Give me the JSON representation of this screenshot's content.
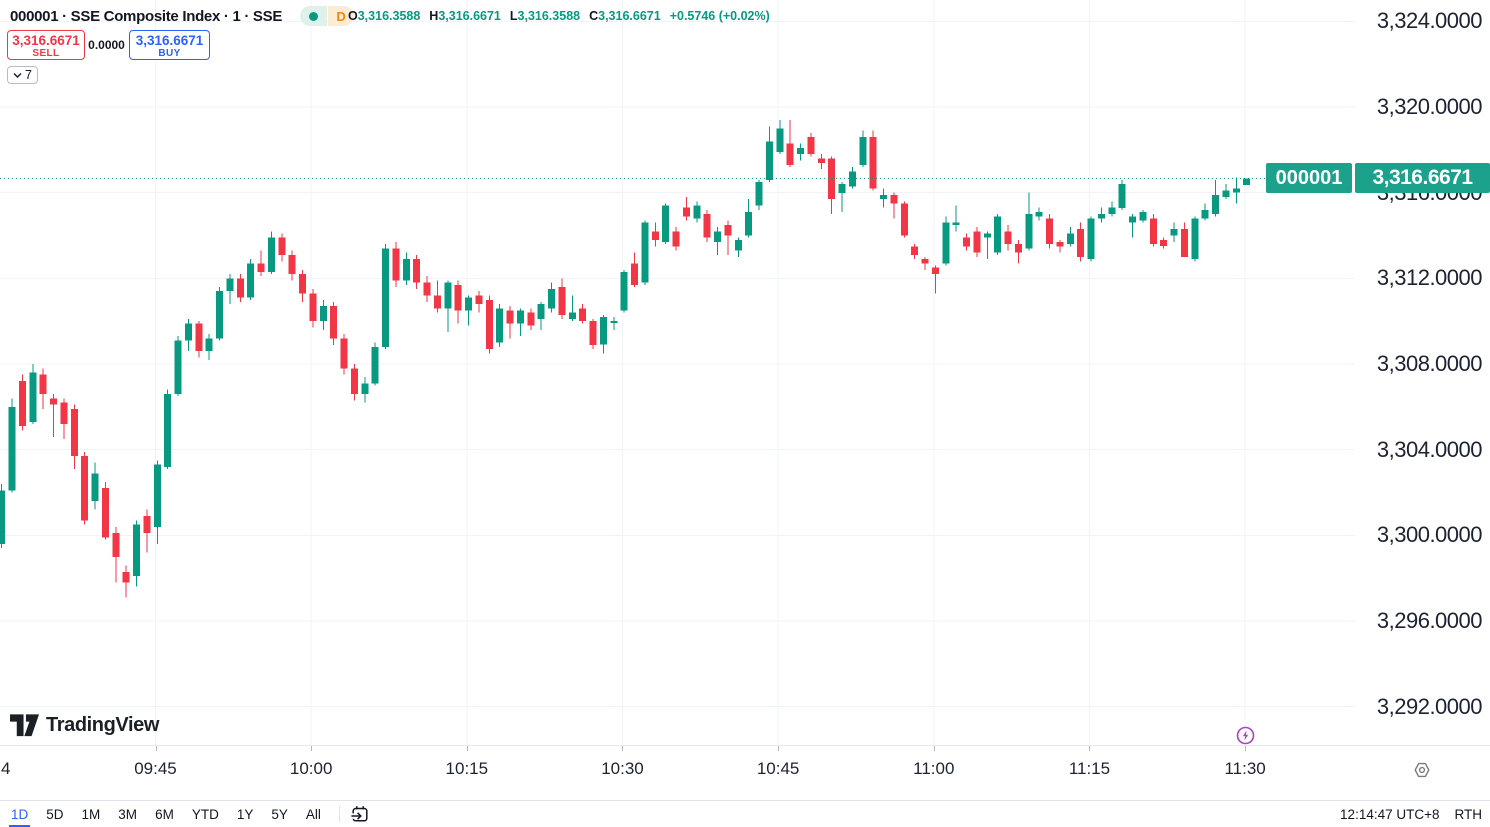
{
  "header": {
    "symbol_title": "000001 · SSE Composite Index · 1 · SSE",
    "market_status": "open",
    "interval_badge": "D",
    "ohlc": {
      "o_key": "O",
      "o_val": "3,316.3588",
      "h_key": "H",
      "h_val": "3,316.6671",
      "l_key": "L",
      "l_val": "3,316.3588",
      "c_key": "C",
      "c_val": "3,316.6671",
      "change": "+0.5746 (+0.02%)"
    },
    "sell_button": {
      "price": "3,316.6671",
      "label": "SELL"
    },
    "spread": "0.0000",
    "buy_button": {
      "price": "3,316.6671",
      "label": "BUY"
    },
    "object_tree_count": "7"
  },
  "price_axis": {
    "labels": [
      {
        "text": "3,324.0000",
        "value": 3324
      },
      {
        "text": "3,320.0000",
        "value": 3320
      },
      {
        "text": "3,316.0000",
        "value": 3316
      },
      {
        "text": "3,312.0000",
        "value": 3312
      },
      {
        "text": "3,308.0000",
        "value": 3308
      },
      {
        "text": "3,304.0000",
        "value": 3304
      },
      {
        "text": "3,300.0000",
        "value": 3300
      },
      {
        "text": "3,296.0000",
        "value": 3296
      },
      {
        "text": "3,292.0000",
        "value": 3292
      }
    ]
  },
  "price_badge": {
    "symbol": "000001",
    "price": "3,316.6671",
    "color": "#1ca28c"
  },
  "time_axis": {
    "labels": [
      "09:45",
      "10:00",
      "10:15",
      "10:30",
      "10:45",
      "11:00",
      "11:15",
      "11:30"
    ],
    "partial_left_label": "4"
  },
  "footer": {
    "logo_text": "TradingView",
    "ranges": [
      "1D",
      "5D",
      "1M",
      "3M",
      "6M",
      "YTD",
      "1Y",
      "5Y",
      "All"
    ],
    "active_range": "1D",
    "clock": "12:14:47 UTC+8",
    "session": "RTH"
  },
  "icons": {
    "lightning_color": "#b53bd0",
    "gear_color": "#787b86",
    "calendar_color": "#131722"
  },
  "chart_data": {
    "type": "candlestick",
    "title": "000001 · SSE Composite Index · 1 · SSE",
    "symbol": "000001",
    "interval_minutes": 1,
    "start_time": "09:30",
    "end_time": "11:30",
    "x_tick_labels": [
      "09:45",
      "10:00",
      "10:15",
      "10:30",
      "10:45",
      "11:00",
      "11:15",
      "11:30"
    ],
    "ylim": [
      3290.21,
      3325.0
    ],
    "y_grid_values": [
      3324,
      3320,
      3316,
      3312,
      3308,
      3304,
      3300,
      3296,
      3292
    ],
    "grid": true,
    "current_price": 3316.6671,
    "up_color": "#089981",
    "down_color": "#f23645",
    "candles_ohlc": [
      [
        3299.6,
        3302.4,
        3299.4,
        3302.1
      ],
      [
        3302.1,
        3306.4,
        3302.0,
        3306.0
      ],
      [
        3307.2,
        3307.5,
        3304.9,
        3305.1
      ],
      [
        3305.3,
        3308.0,
        3305.2,
        3307.6
      ],
      [
        3307.5,
        3307.8,
        3305.9,
        3306.6
      ],
      [
        3306.4,
        3306.6,
        3304.6,
        3306.1
      ],
      [
        3306.2,
        3306.4,
        3304.5,
        3305.2
      ],
      [
        3305.9,
        3306.1,
        3303.1,
        3303.7
      ],
      [
        3303.7,
        3303.9,
        3300.5,
        3300.7
      ],
      [
        3301.6,
        3303.4,
        3301.2,
        3302.9
      ],
      [
        3302.2,
        3302.5,
        3299.8,
        3299.9
      ],
      [
        3300.1,
        3300.4,
        3297.8,
        3299.0
      ],
      [
        3298.3,
        3298.6,
        3297.1,
        3297.8
      ],
      [
        3298.1,
        3300.7,
        3297.6,
        3300.5
      ],
      [
        3300.9,
        3301.2,
        3299.2,
        3300.1
      ],
      [
        3300.4,
        3303.5,
        3299.6,
        3303.3
      ],
      [
        3303.2,
        3306.8,
        3303.1,
        3306.6
      ],
      [
        3306.6,
        3309.3,
        3306.5,
        3309.1
      ],
      [
        3309.1,
        3310.1,
        3308.6,
        3309.9
      ],
      [
        3309.9,
        3310.0,
        3308.3,
        3308.6
      ],
      [
        3308.6,
        3309.4,
        3308.2,
        3309.2
      ],
      [
        3309.2,
        3311.6,
        3309.1,
        3311.4
      ],
      [
        3311.4,
        3312.2,
        3310.8,
        3312.0
      ],
      [
        3312.0,
        3312.2,
        3310.9,
        3311.1
      ],
      [
        3311.1,
        3312.9,
        3311.0,
        3312.7
      ],
      [
        3312.7,
        3313.3,
        3312.1,
        3312.3
      ],
      [
        3312.3,
        3314.2,
        3312.2,
        3313.9
      ],
      [
        3313.9,
        3314.1,
        3312.8,
        3313.1
      ],
      [
        3313.1,
        3313.3,
        3311.9,
        3312.2
      ],
      [
        3312.2,
        3312.4,
        3310.9,
        3311.3
      ],
      [
        3311.3,
        3311.5,
        3309.7,
        3310.0
      ],
      [
        3310.0,
        3311.0,
        3309.6,
        3310.7
      ],
      [
        3310.7,
        3310.9,
        3308.9,
        3309.2
      ],
      [
        3309.2,
        3309.4,
        3307.5,
        3307.8
      ],
      [
        3307.8,
        3308.0,
        3306.3,
        3306.6
      ],
      [
        3306.6,
        3307.4,
        3306.2,
        3307.1
      ],
      [
        3307.1,
        3309.0,
        3307.0,
        3308.8
      ],
      [
        3308.8,
        3313.6,
        3308.7,
        3313.4
      ],
      [
        3313.4,
        3313.7,
        3311.6,
        3311.9
      ],
      [
        3311.9,
        3313.2,
        3311.7,
        3312.9
      ],
      [
        3312.9,
        3313.1,
        3311.5,
        3311.8
      ],
      [
        3311.8,
        3312.1,
        3310.9,
        3311.2
      ],
      [
        3311.2,
        3311.9,
        3310.4,
        3310.6
      ],
      [
        3310.6,
        3311.9,
        3309.5,
        3311.8
      ],
      [
        3311.7,
        3311.9,
        3309.9,
        3310.5
      ],
      [
        3310.5,
        3311.2,
        3309.8,
        3311.1
      ],
      [
        3311.2,
        3311.4,
        3310.4,
        3310.8
      ],
      [
        3311.0,
        3311.2,
        3308.5,
        3308.7
      ],
      [
        3309.0,
        3310.8,
        3308.8,
        3310.6
      ],
      [
        3310.5,
        3310.7,
        3309.2,
        3309.9
      ],
      [
        3309.9,
        3310.6,
        3309.3,
        3310.5
      ],
      [
        3310.4,
        3310.6,
        3309.6,
        3309.8
      ],
      [
        3310.1,
        3310.9,
        3309.6,
        3310.8
      ],
      [
        3310.6,
        3311.8,
        3310.4,
        3311.5
      ],
      [
        3311.6,
        3312.0,
        3310.1,
        3310.3
      ],
      [
        3310.1,
        3311.2,
        3310.0,
        3310.4
      ],
      [
        3310.6,
        3310.8,
        3309.9,
        3310.0
      ],
      [
        3310.0,
        3310.1,
        3308.7,
        3308.9
      ],
      [
        3308.9,
        3310.3,
        3308.5,
        3310.2
      ],
      [
        3310.0,
        3310.2,
        3309.6,
        3310.0
      ],
      [
        3310.5,
        3312.4,
        3310.4,
        3312.3
      ],
      [
        3312.7,
        3313.2,
        3311.6,
        3311.7
      ],
      [
        3311.8,
        3314.7,
        3311.7,
        3314.6
      ],
      [
        3314.2,
        3314.6,
        3313.5,
        3313.8
      ],
      [
        3313.7,
        3315.5,
        3313.6,
        3315.4
      ],
      [
        3314.2,
        3314.4,
        3313.3,
        3313.5
      ],
      [
        3315.3,
        3315.8,
        3314.7,
        3314.9
      ],
      [
        3314.8,
        3315.6,
        3314.6,
        3315.4
      ],
      [
        3315.0,
        3315.2,
        3313.7,
        3313.9
      ],
      [
        3313.7,
        3314.4,
        3313.1,
        3314.2
      ],
      [
        3314.5,
        3314.7,
        3313.1,
        3314.0
      ],
      [
        3313.3,
        3313.9,
        3313.0,
        3313.8
      ],
      [
        3314.0,
        3315.7,
        3313.9,
        3315.1
      ],
      [
        3315.4,
        3316.6,
        3315.2,
        3316.5
      ],
      [
        3316.6,
        3319.1,
        3316.5,
        3318.4
      ],
      [
        3317.9,
        3319.4,
        3317.8,
        3319.0
      ],
      [
        3318.3,
        3319.4,
        3317.2,
        3317.3
      ],
      [
        3317.8,
        3318.3,
        3317.5,
        3318.1
      ],
      [
        3318.6,
        3318.8,
        3317.7,
        3317.8
      ],
      [
        3317.6,
        3317.8,
        3317.1,
        3317.4
      ],
      [
        3317.6,
        3317.7,
        3315.0,
        3315.7
      ],
      [
        3316.0,
        3316.5,
        3315.1,
        3316.4
      ],
      [
        3316.3,
        3317.2,
        3316.2,
        3317.0
      ],
      [
        3317.3,
        3318.9,
        3317.2,
        3318.6
      ],
      [
        3318.6,
        3318.9,
        3316.1,
        3316.2
      ],
      [
        3315.7,
        3316.2,
        3315.3,
        3315.9
      ],
      [
        3315.9,
        3316.0,
        3314.8,
        3315.5
      ],
      [
        3315.5,
        3315.6,
        3313.9,
        3314.0
      ],
      [
        3313.5,
        3313.6,
        3312.9,
        3313.1
      ],
      [
        3312.9,
        3313.0,
        3312.4,
        3312.7
      ],
      [
        3312.5,
        3312.6,
        3311.3,
        3312.2
      ],
      [
        3312.7,
        3314.9,
        3312.6,
        3314.6
      ],
      [
        3314.5,
        3315.4,
        3314.2,
        3314.6
      ],
      [
        3313.9,
        3314.1,
        3313.3,
        3313.5
      ],
      [
        3314.2,
        3314.4,
        3313.0,
        3313.2
      ],
      [
        3313.9,
        3314.2,
        3312.9,
        3314.1
      ],
      [
        3313.2,
        3315.0,
        3313.1,
        3314.9
      ],
      [
        3314.2,
        3314.5,
        3313.3,
        3313.6
      ],
      [
        3313.6,
        3313.8,
        3312.7,
        3313.2
      ],
      [
        3313.4,
        3316.0,
        3313.3,
        3315.0
      ],
      [
        3314.9,
        3315.3,
        3314.7,
        3315.1
      ],
      [
        3314.8,
        3315.0,
        3313.4,
        3313.6
      ],
      [
        3313.7,
        3313.8,
        3313.2,
        3313.5
      ],
      [
        3313.6,
        3314.4,
        3313.5,
        3314.1
      ],
      [
        3314.3,
        3314.6,
        3312.8,
        3313.0
      ],
      [
        3312.9,
        3314.9,
        3312.8,
        3314.8
      ],
      [
        3314.8,
        3315.3,
        3314.6,
        3315.0
      ],
      [
        3315.0,
        3315.6,
        3314.9,
        3315.3
      ],
      [
        3315.3,
        3316.6,
        3315.2,
        3316.4
      ],
      [
        3314.6,
        3315.0,
        3313.9,
        3314.9
      ],
      [
        3314.7,
        3315.2,
        3314.6,
        3315.1
      ],
      [
        3314.8,
        3315.0,
        3313.5,
        3313.6
      ],
      [
        3313.8,
        3313.9,
        3313.4,
        3313.5
      ],
      [
        3314.0,
        3314.6,
        3313.7,
        3314.3
      ],
      [
        3314.3,
        3314.6,
        3313.0,
        3313.0
      ],
      [
        3312.9,
        3314.9,
        3312.8,
        3314.8
      ],
      [
        3314.8,
        3315.5,
        3314.7,
        3315.2
      ],
      [
        3315.0,
        3316.6,
        3314.9,
        3315.9
      ],
      [
        3315.8,
        3316.4,
        3315.7,
        3316.1
      ],
      [
        3316.0,
        3316.7,
        3315.5,
        3316.2
      ],
      [
        3316.3588,
        3316.6671,
        3316.3588,
        3316.6671
      ]
    ]
  }
}
